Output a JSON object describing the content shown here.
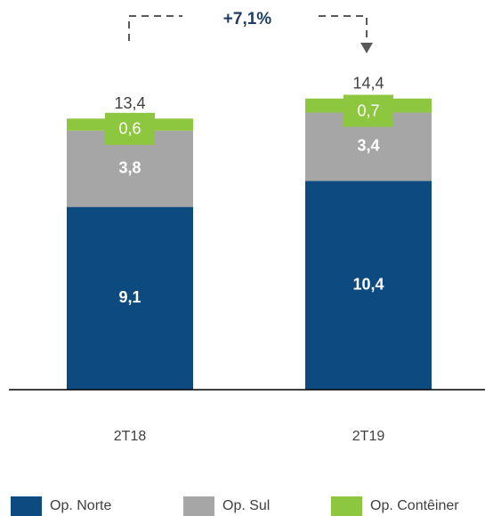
{
  "chart_data": {
    "type": "stacked_bar",
    "annotation": "+7,1%",
    "categories": [
      "2T18",
      "2T19"
    ],
    "totals": [
      13.4,
      14.4
    ],
    "total_labels": [
      "13,4",
      "14,4"
    ],
    "series": [
      {
        "name": "Op. Norte",
        "color": "#0d4a7f",
        "values": [
          9.1,
          10.4
        ],
        "value_labels": [
          "9,1",
          "10,4"
        ]
      },
      {
        "name": "Op. Sul",
        "color": "#a6a6a6",
        "values": [
          3.8,
          3.4
        ],
        "value_labels": [
          "3,8",
          "3,4"
        ]
      },
      {
        "name": "Op. Contêiner",
        "color": "#8dc63f",
        "values": [
          0.6,
          0.7
        ],
        "value_labels": [
          "0,6",
          "0,7"
        ]
      }
    ],
    "legend": "bottom"
  }
}
